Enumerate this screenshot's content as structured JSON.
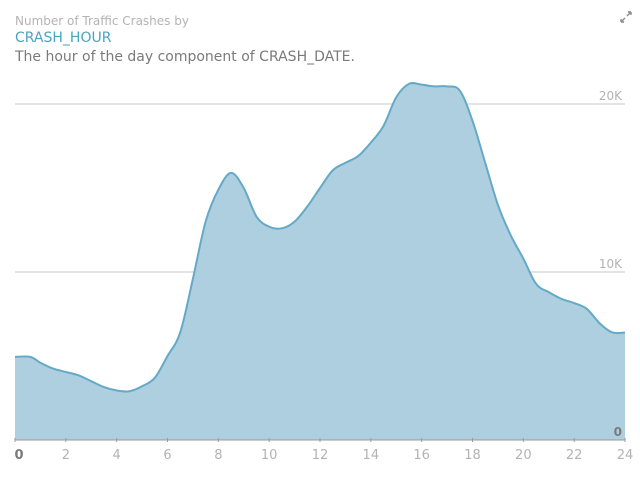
{
  "header": {
    "title": "Number of Traffic Crashes by",
    "subtitle": "CRASH_HOUR",
    "description": "The hour of the day component of CRASH_DATE."
  },
  "controls": {
    "expand_icon": "expand-arrows-icon"
  },
  "colors": {
    "area_fill": "#aecfdf",
    "line": "#64a9c6",
    "grid": "#c8c8c8",
    "tick": "#b3b3b3",
    "zero_label": "#7a7a7a",
    "subtitle": "#4aa3c2"
  },
  "chart_data": {
    "type": "area",
    "title": "Number of Traffic Crashes by",
    "xlabel": "CRASH_HOUR",
    "ylabel": "",
    "x": [
      0,
      0.6,
      1,
      1.5,
      2,
      2.5,
      3,
      3.5,
      4,
      4.5,
      5,
      5.5,
      6,
      6.5,
      7,
      7.5,
      8,
      8.5,
      9,
      9.5,
      10,
      10.5,
      11,
      11.5,
      12,
      12.5,
      13,
      13.5,
      14,
      14.5,
      15,
      15.5,
      16,
      16.5,
      17,
      17.5,
      18,
      18.5,
      19,
      19.5,
      20,
      20.5,
      21,
      21.5,
      22,
      22.5,
      23,
      23.5,
      24
    ],
    "y": [
      4950,
      4950,
      4600,
      4250,
      4050,
      3850,
      3500,
      3150,
      2950,
      2900,
      3200,
      3700,
      5000,
      6400,
      9600,
      13000,
      14900,
      15900,
      15000,
      13300,
      12700,
      12600,
      13000,
      13900,
      15000,
      16050,
      16500,
      16900,
      17700,
      18700,
      20400,
      21200,
      21150,
      21050,
      21050,
      20800,
      19000,
      16500,
      14000,
      12200,
      10800,
      9300,
      8800,
      8400,
      8150,
      7800,
      6950,
      6400,
      6400
    ],
    "xlim": [
      0,
      24
    ],
    "ylim": [
      0,
      21000
    ],
    "x_ticks": [
      "0",
      "2",
      "4",
      "6",
      "8",
      "10",
      "12",
      "14",
      "16",
      "18",
      "20",
      "22",
      "24"
    ],
    "y_ticks": [
      {
        "value": 0,
        "label": "0"
      },
      {
        "value": 10000,
        "label": "10K"
      },
      {
        "value": 20000,
        "label": "20K"
      }
    ],
    "grid": true,
    "legend": "none"
  }
}
